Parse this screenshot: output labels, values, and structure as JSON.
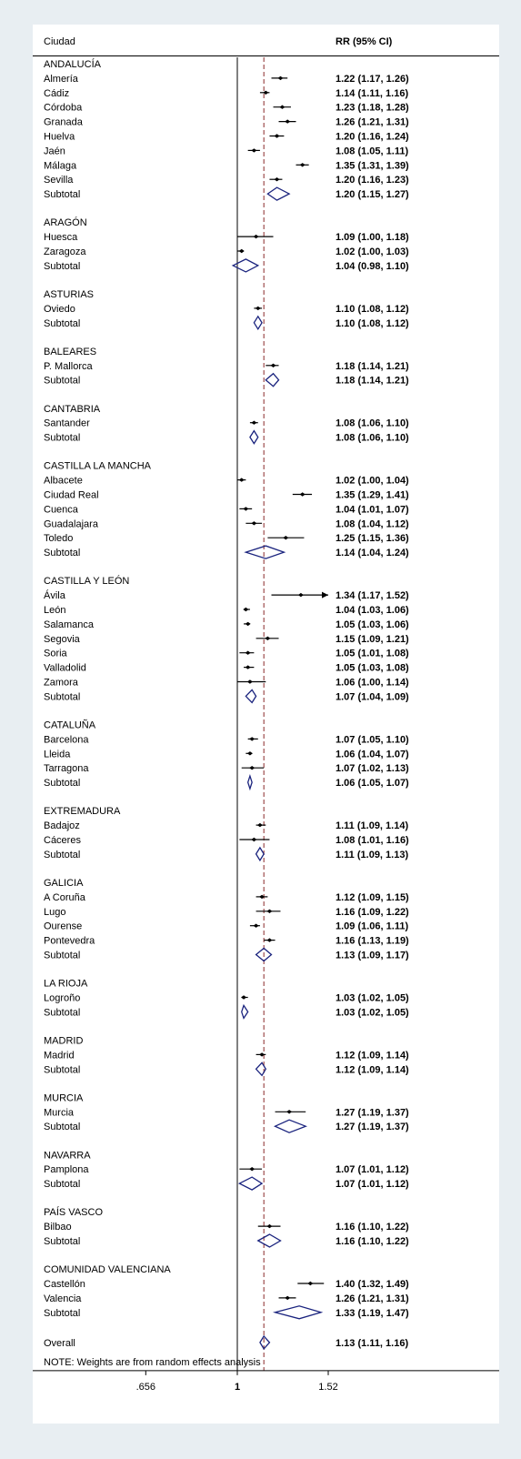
{
  "chart_data": {
    "type": "forest",
    "header_left": "Ciudad",
    "header_right": "RR (95% CI)",
    "reference_value": 1,
    "overall_line_value": 1.13,
    "x_scale": "log",
    "x_ticks": [
      {
        "value": 0.656,
        "label": ".656"
      },
      {
        "value": 1,
        "label": "1"
      },
      {
        "value": 1.52,
        "label": "1.52"
      }
    ],
    "axis_range": [
      0.656,
      1.52
    ],
    "note": "NOTE: Weights are from random effects analysis",
    "colors": {
      "point": "#000000",
      "diamond": "#1a237e",
      "dashed_line": "#8b2a2a",
      "panel_bg": "#e8eef2"
    },
    "groups": [
      {
        "name": "ANDALUCÍA",
        "rows": [
          {
            "label": "Almería",
            "rr": 1.22,
            "lo": 1.17,
            "hi": 1.26,
            "text": "1.22 (1.17, 1.26)"
          },
          {
            "label": "Cádiz",
            "rr": 1.14,
            "lo": 1.11,
            "hi": 1.16,
            "text": "1.14 (1.11, 1.16)"
          },
          {
            "label": "Córdoba",
            "rr": 1.23,
            "lo": 1.18,
            "hi": 1.28,
            "text": "1.23 (1.18, 1.28)"
          },
          {
            "label": "Granada",
            "rr": 1.26,
            "lo": 1.21,
            "hi": 1.31,
            "text": "1.26 (1.21, 1.31)"
          },
          {
            "label": "Huelva",
            "rr": 1.2,
            "lo": 1.16,
            "hi": 1.24,
            "text": "1.20 (1.16, 1.24)"
          },
          {
            "label": "Jaén",
            "rr": 1.08,
            "lo": 1.05,
            "hi": 1.11,
            "text": "1.08 (1.05, 1.11)"
          },
          {
            "label": "Málaga",
            "rr": 1.35,
            "lo": 1.31,
            "hi": 1.39,
            "text": "1.35 (1.31, 1.39)"
          },
          {
            "label": "Sevilla",
            "rr": 1.2,
            "lo": 1.16,
            "hi": 1.23,
            "text": "1.20 (1.16, 1.23)"
          }
        ],
        "subtotal": {
          "label": "Subtotal",
          "rr": 1.2,
          "lo": 1.15,
          "hi": 1.27,
          "text": "1.20 (1.15, 1.27)"
        }
      },
      {
        "name": "ARAGÓN",
        "rows": [
          {
            "label": "Huesca",
            "rr": 1.09,
            "lo": 1.0,
            "hi": 1.18,
            "text": "1.09 (1.00, 1.18)"
          },
          {
            "label": "Zaragoza",
            "rr": 1.02,
            "lo": 1.0,
            "hi": 1.03,
            "text": "1.02 (1.00, 1.03)"
          }
        ],
        "subtotal": {
          "label": "Subtotal",
          "rr": 1.04,
          "lo": 0.98,
          "hi": 1.1,
          "text": "1.04 (0.98, 1.10)"
        }
      },
      {
        "name": "ASTURIAS",
        "rows": [
          {
            "label": "Oviedo",
            "rr": 1.1,
            "lo": 1.08,
            "hi": 1.12,
            "text": "1.10 (1.08, 1.12)"
          }
        ],
        "subtotal": {
          "label": "Subtotal",
          "rr": 1.1,
          "lo": 1.08,
          "hi": 1.12,
          "text": "1.10 (1.08, 1.12)"
        }
      },
      {
        "name": "BALEARES",
        "rows": [
          {
            "label": "P. Mallorca",
            "rr": 1.18,
            "lo": 1.14,
            "hi": 1.21,
            "text": "1.18 (1.14, 1.21)"
          }
        ],
        "subtotal": {
          "label": "Subtotal",
          "rr": 1.18,
          "lo": 1.14,
          "hi": 1.21,
          "text": "1.18 (1.14, 1.21)"
        }
      },
      {
        "name": "CANTABRIA",
        "rows": [
          {
            "label": "Santander",
            "rr": 1.08,
            "lo": 1.06,
            "hi": 1.1,
            "text": "1.08 (1.06, 1.10)"
          }
        ],
        "subtotal": {
          "label": "Subtotal",
          "rr": 1.08,
          "lo": 1.06,
          "hi": 1.1,
          "text": "1.08 (1.06, 1.10)"
        }
      },
      {
        "name": "CASTILLA LA MANCHA",
        "rows": [
          {
            "label": "Albacete",
            "rr": 1.02,
            "lo": 1.0,
            "hi": 1.04,
            "text": "1.02 (1.00, 1.04)"
          },
          {
            "label": "Ciudad Real",
            "rr": 1.35,
            "lo": 1.29,
            "hi": 1.41,
            "text": "1.35 (1.29, 1.41)"
          },
          {
            "label": "Cuenca",
            "rr": 1.04,
            "lo": 1.01,
            "hi": 1.07,
            "text": "1.04 (1.01, 1.07)"
          },
          {
            "label": "Guadalajara",
            "rr": 1.08,
            "lo": 1.04,
            "hi": 1.12,
            "text": "1.08 (1.04, 1.12)"
          },
          {
            "label": "Toledo",
            "rr": 1.25,
            "lo": 1.15,
            "hi": 1.36,
            "text": "1.25 (1.15, 1.36)"
          }
        ],
        "subtotal": {
          "label": "Subtotal",
          "rr": 1.14,
          "lo": 1.04,
          "hi": 1.24,
          "text": "1.14 (1.04, 1.24)"
        }
      },
      {
        "name": "CASTILLA Y LEÓN",
        "rows": [
          {
            "label": "Ávila",
            "rr": 1.34,
            "lo": 1.17,
            "hi": 1.52,
            "text": "1.34 (1.17, 1.52)",
            "arrow": true
          },
          {
            "label": "León",
            "rr": 1.04,
            "lo": 1.03,
            "hi": 1.06,
            "text": "1.04 (1.03, 1.06)"
          },
          {
            "label": "Salamanca",
            "rr": 1.05,
            "lo": 1.03,
            "hi": 1.06,
            "text": "1.05 (1.03, 1.06)"
          },
          {
            "label": "Segovia",
            "rr": 1.15,
            "lo": 1.09,
            "hi": 1.21,
            "text": "1.15 (1.09, 1.21)"
          },
          {
            "label": "Soria",
            "rr": 1.05,
            "lo": 1.01,
            "hi": 1.08,
            "text": "1.05 (1.01, 1.08)"
          },
          {
            "label": "Valladolid",
            "rr": 1.05,
            "lo": 1.03,
            "hi": 1.08,
            "text": "1.05 (1.03, 1.08)"
          },
          {
            "label": "Zamora",
            "rr": 1.06,
            "lo": 1.0,
            "hi": 1.14,
            "text": "1.06 (1.00, 1.14)"
          }
        ],
        "subtotal": {
          "label": "Subtotal",
          "rr": 1.07,
          "lo": 1.04,
          "hi": 1.09,
          "text": "1.07 (1.04, 1.09)"
        }
      },
      {
        "name": "CATALUÑA",
        "rows": [
          {
            "label": "Barcelona",
            "rr": 1.07,
            "lo": 1.05,
            "hi": 1.1,
            "text": "1.07 (1.05, 1.10)"
          },
          {
            "label": "Lleida",
            "rr": 1.06,
            "lo": 1.04,
            "hi": 1.07,
            "text": "1.06 (1.04, 1.07)"
          },
          {
            "label": "Tarragona",
            "rr": 1.07,
            "lo": 1.02,
            "hi": 1.13,
            "text": "1.07 (1.02, 1.13)"
          }
        ],
        "subtotal": {
          "label": "Subtotal",
          "rr": 1.06,
          "lo": 1.05,
          "hi": 1.07,
          "text": "1.06 (1.05, 1.07)"
        }
      },
      {
        "name": "EXTREMADURA",
        "rows": [
          {
            "label": "Badajoz",
            "rr": 1.11,
            "lo": 1.09,
            "hi": 1.14,
            "text": "1.11 (1.09, 1.14)"
          },
          {
            "label": "Cáceres",
            "rr": 1.08,
            "lo": 1.01,
            "hi": 1.16,
            "text": "1.08 (1.01, 1.16)"
          }
        ],
        "subtotal": {
          "label": "Subtotal",
          "rr": 1.11,
          "lo": 1.09,
          "hi": 1.13,
          "text": "1.11 (1.09, 1.13)"
        }
      },
      {
        "name": "GALICIA",
        "rows": [
          {
            "label": "A Coruña",
            "rr": 1.12,
            "lo": 1.09,
            "hi": 1.15,
            "text": "1.12 (1.09, 1.15)"
          },
          {
            "label": "Lugo",
            "rr": 1.16,
            "lo": 1.09,
            "hi": 1.22,
            "text": "1.16 (1.09, 1.22)"
          },
          {
            "label": "Ourense",
            "rr": 1.09,
            "lo": 1.06,
            "hi": 1.11,
            "text": "1.09 (1.06, 1.11)"
          },
          {
            "label": "Pontevedra",
            "rr": 1.16,
            "lo": 1.13,
            "hi": 1.19,
            "text": "1.16 (1.13, 1.19)"
          }
        ],
        "subtotal": {
          "label": "Subtotal",
          "rr": 1.13,
          "lo": 1.09,
          "hi": 1.17,
          "text": "1.13 (1.09, 1.17)"
        }
      },
      {
        "name": "LA RIOJA",
        "rows": [
          {
            "label": "Logroño",
            "rr": 1.03,
            "lo": 1.02,
            "hi": 1.05,
            "text": "1.03 (1.02, 1.05)"
          }
        ],
        "subtotal": {
          "label": "Subtotal",
          "rr": 1.03,
          "lo": 1.02,
          "hi": 1.05,
          "text": "1.03 (1.02, 1.05)"
        }
      },
      {
        "name": "MADRID",
        "rows": [
          {
            "label": "Madrid",
            "rr": 1.12,
            "lo": 1.09,
            "hi": 1.14,
            "text": "1.12 (1.09, 1.14)"
          }
        ],
        "subtotal": {
          "label": "Subtotal",
          "rr": 1.12,
          "lo": 1.09,
          "hi": 1.14,
          "text": "1.12 (1.09, 1.14)"
        }
      },
      {
        "name": "MURCIA",
        "rows": [
          {
            "label": "Murcia",
            "rr": 1.27,
            "lo": 1.19,
            "hi": 1.37,
            "text": "1.27 (1.19, 1.37)"
          }
        ],
        "subtotal": {
          "label": "Subtotal",
          "rr": 1.27,
          "lo": 1.19,
          "hi": 1.37,
          "text": "1.27 (1.19, 1.37)"
        }
      },
      {
        "name": "NAVARRA",
        "rows": [
          {
            "label": "Pamplona",
            "rr": 1.07,
            "lo": 1.01,
            "hi": 1.12,
            "text": "1.07 (1.01, 1.12)"
          }
        ],
        "subtotal": {
          "label": "Subtotal",
          "rr": 1.07,
          "lo": 1.01,
          "hi": 1.12,
          "text": "1.07 (1.01, 1.12)"
        }
      },
      {
        "name": "PAÍS VASCO",
        "rows": [
          {
            "label": "Bilbao",
            "rr": 1.16,
            "lo": 1.1,
            "hi": 1.22,
            "text": "1.16 (1.10, 1.22)"
          }
        ],
        "subtotal": {
          "label": "Subtotal",
          "rr": 1.16,
          "lo": 1.1,
          "hi": 1.22,
          "text": "1.16 (1.10, 1.22)"
        }
      },
      {
        "name": "COMUNIDAD VALENCIANA",
        "rows": [
          {
            "label": "Castellón",
            "rr": 1.4,
            "lo": 1.32,
            "hi": 1.49,
            "text": "1.40 (1.32, 1.49)"
          },
          {
            "label": "Valencia",
            "rr": 1.26,
            "lo": 1.21,
            "hi": 1.31,
            "text": "1.26 (1.21, 1.31)"
          }
        ],
        "subtotal": {
          "label": "Subtotal",
          "rr": 1.33,
          "lo": 1.19,
          "hi": 1.47,
          "text": "1.33 (1.19, 1.47)"
        }
      }
    ],
    "overall": {
      "label": "Overall",
      "rr": 1.13,
      "lo": 1.11,
      "hi": 1.16,
      "text": "1.13 (1.11, 1.16)"
    }
  }
}
